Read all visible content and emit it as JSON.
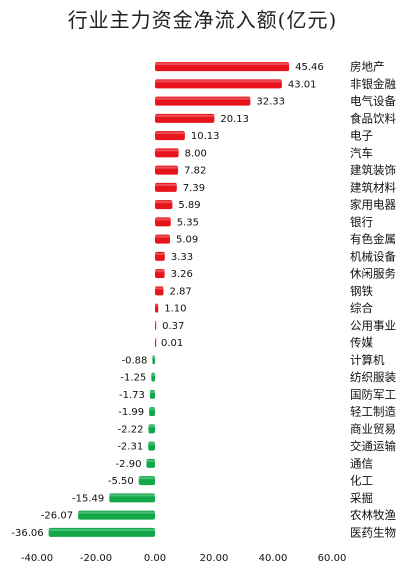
{
  "chart_data": {
    "type": "bar",
    "orientation": "horizontal",
    "title": "行业主力资金净流入额(亿元)",
    "categories": [
      "房地产",
      "非银金融",
      "电气设备",
      "食品饮料",
      "电子",
      "汽车",
      "建筑装饰",
      "建筑材料",
      "家用电器",
      "银行",
      "有色金属",
      "机械设备",
      "休闲服务",
      "钢铁",
      "综合",
      "公用事业",
      "传媒",
      "计算机",
      "纺织服装",
      "国防军工",
      "轻工制造",
      "商业贸易",
      "交通运输",
      "通信",
      "化工",
      "采掘",
      "农林牧渔",
      "医药生物"
    ],
    "values": [
      45.46,
      43.01,
      32.33,
      20.13,
      10.13,
      8.0,
      7.82,
      7.39,
      5.89,
      5.35,
      5.09,
      3.33,
      3.26,
      2.87,
      1.1,
      0.37,
      0.01,
      -0.88,
      -1.25,
      -1.73,
      -1.99,
      -2.22,
      -2.31,
      -2.9,
      -5.5,
      -15.49,
      -26.07,
      -36.06
    ],
    "value_labels": [
      "45.46",
      "43.01",
      "32.33",
      "20.13",
      "10.13",
      "8.00",
      "7.82",
      "7.39",
      "5.89",
      "5.35",
      "5.09",
      "3.33",
      "3.26",
      "2.87",
      "1.10",
      "0.37",
      "0.01",
      "-0.88",
      "-1.25",
      "-1.73",
      "-1.99",
      "-2.22",
      "-2.31",
      "-2.90",
      "-5.50",
      "-15.49",
      "-26.07",
      "-36.06"
    ],
    "xlim": [
      -40,
      60
    ],
    "x_ticks": [
      "-40.00",
      "-20.00",
      "0.00",
      "20.00",
      "40.00",
      "60.00"
    ],
    "x_tick_values": [
      -40,
      -20,
      0,
      20,
      40,
      60
    ],
    "colors": {
      "positive": "#e8141b",
      "negative": "#12a84a"
    },
    "grid": false,
    "legend": "none"
  }
}
